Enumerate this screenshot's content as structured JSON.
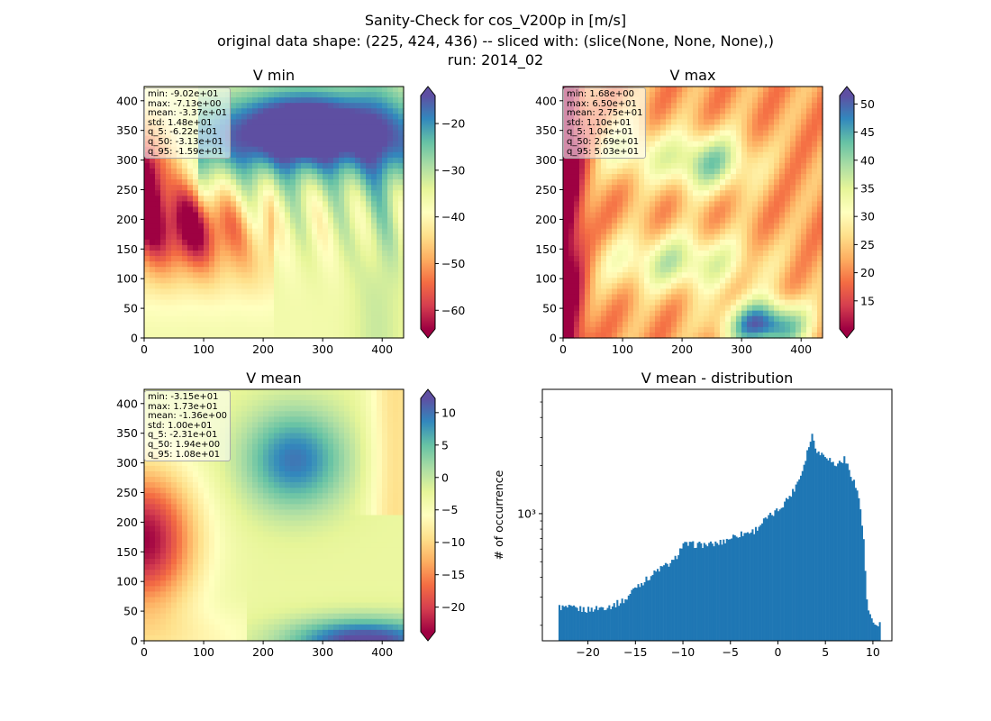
{
  "suptitle": {
    "line1": "Sanity-Check for cos_V200p in [m/s]",
    "line2": "original data shape: (225, 424, 436) -- sliced with: (slice(None, None, None),)",
    "line3": "run: 2014_02"
  },
  "colormap": "Spectral",
  "colormap_colors": [
    "#9e0142",
    "#d53e4f",
    "#f46d43",
    "#fdae61",
    "#fee08b",
    "#ffffbf",
    "#e6f598",
    "#abdda4",
    "#66c2a5",
    "#3288bd",
    "#5e4fa2"
  ],
  "bar_color": "#1f77b4",
  "chart_data": [
    {
      "type": "heatmap",
      "title": "V min",
      "xlim": [
        0,
        436
      ],
      "ylim": [
        0,
        424
      ],
      "xticks": [
        "0",
        "100",
        "200",
        "300",
        "400"
      ],
      "yticks": [
        "0",
        "50",
        "100",
        "150",
        "200",
        "250",
        "300",
        "350",
        "400"
      ],
      "colorbar": {
        "range": [
          -64,
          -14
        ],
        "ticks": [
          "−60",
          "−50",
          "−40",
          "−30",
          "−20"
        ],
        "extend": "both"
      },
      "stats": [
        "min: -9.02e+01",
        "max: -7.13e+00",
        "mean: -3.37e+01",
        "std: 1.48e+01",
        "q_5: -6.22e+01",
        "q_50: -3.13e+01",
        "q_95: -1.59e+01"
      ]
    },
    {
      "type": "heatmap",
      "title": "V max",
      "xlim": [
        0,
        436
      ],
      "ylim": [
        0,
        424
      ],
      "xticks": [
        "0",
        "100",
        "200",
        "300",
        "400"
      ],
      "yticks": [
        "0",
        "50",
        "100",
        "150",
        "200",
        "250",
        "300",
        "350",
        "400"
      ],
      "colorbar": {
        "range": [
          10,
          51.5
        ],
        "ticks": [
          "15",
          "20",
          "25",
          "30",
          "35",
          "40",
          "45",
          "50"
        ],
        "extend": "both"
      },
      "stats": [
        "min: 1.68e+00",
        "max: 6.50e+01",
        "mean: 2.75e+01",
        "std: 1.10e+01",
        "q_5: 1.04e+01",
        "q_50: 2.69e+01",
        "q_95: 5.03e+01"
      ]
    },
    {
      "type": "heatmap",
      "title": "V mean",
      "xlim": [
        0,
        436
      ],
      "ylim": [
        0,
        424
      ],
      "xticks": [
        "0",
        "100",
        "200",
        "300",
        "400"
      ],
      "yticks": [
        "0",
        "50",
        "100",
        "150",
        "200",
        "250",
        "300",
        "350",
        "400"
      ],
      "colorbar": {
        "range": [
          -23.8,
          12.2
        ],
        "ticks": [
          "−20",
          "−15",
          "−10",
          "−5",
          "0",
          "5",
          "10"
        ],
        "extend": "both"
      },
      "stats": [
        "min: -3.15e+01",
        "max: 1.73e+01",
        "mean: -1.36e+00",
        "std: 1.00e+01",
        "q_5: -2.31e+01",
        "q_50: 1.94e+00",
        "q_95: 1.08e+01"
      ]
    },
    {
      "type": "bar",
      "title": "V mean - distribution",
      "ylabel": "# of occurrence",
      "yscale": "log",
      "xlim": [
        -24.8,
        12.0
      ],
      "ylim": [
        160,
        6000
      ],
      "xticks": [
        -20,
        -15,
        -10,
        -5,
        0,
        5,
        10
      ],
      "xtick_labels": [
        "−20",
        "−15",
        "−10",
        "−5",
        "0",
        "5",
        "10"
      ],
      "yticks": [
        1000
      ],
      "ytick_labels": [
        "10³"
      ],
      "bin_range": [
        -23.1,
        10.8
      ],
      "bins": 200,
      "anchors": [
        [
          -23.1,
          260
        ],
        [
          -20.0,
          250
        ],
        [
          -17.5,
          265
        ],
        [
          -16.0,
          290
        ],
        [
          -15.0,
          350
        ],
        [
          -14.0,
          380
        ],
        [
          -12.5,
          450
        ],
        [
          -11.0,
          500
        ],
        [
          -10.0,
          640
        ],
        [
          -7.0,
          640
        ],
        [
          -6.0,
          660
        ],
        [
          -4.5,
          730
        ],
        [
          -2.5,
          780
        ],
        [
          -1.5,
          900
        ],
        [
          0.0,
          1050
        ],
        [
          1.5,
          1350
        ],
        [
          2.5,
          1800
        ],
        [
          3.2,
          2600
        ],
        [
          3.6,
          3100
        ],
        [
          4.2,
          2400
        ],
        [
          5.0,
          2350
        ],
        [
          6.0,
          2000
        ],
        [
          7.0,
          2200
        ],
        [
          8.0,
          1600
        ],
        [
          8.6,
          1200
        ],
        [
          9.0,
          700
        ],
        [
          9.4,
          260
        ],
        [
          10.0,
          200
        ],
        [
          10.8,
          205
        ]
      ]
    }
  ]
}
